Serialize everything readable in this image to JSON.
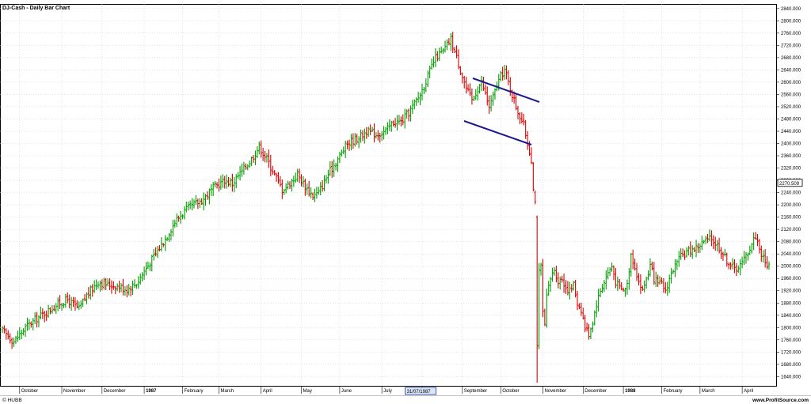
{
  "chart_data": {
    "type": "ohlc",
    "title": "DJ-Cash - Daily Bar Chart",
    "ylim": [
      1610,
      2855
    ],
    "y_ticks": [
      1640,
      1680,
      1720,
      1760,
      1800,
      1840,
      1880,
      1920,
      1960,
      2000,
      2040,
      2080,
      2120,
      2160,
      2200,
      2240,
      2280,
      2320,
      2360,
      2400,
      2440,
      2480,
      2520,
      2560,
      2600,
      2640,
      2680,
      2720,
      2760,
      2800,
      2840
    ],
    "y_tick_labels": [
      "1640.000",
      "1680.000",
      "1720.000",
      "1760.000",
      "1800.000",
      "1840.000",
      "1880.000",
      "1920.000",
      "1960.000",
      "2000.000",
      "2040.000",
      "2080.000",
      "2120.000",
      "2160.000",
      "2200.000",
      "2240.000",
      "2280.000",
      "2320.000",
      "2360.000",
      "2400.000",
      "2440.000",
      "2480.000",
      "2520.000",
      "2560.000",
      "2600.000",
      "2640.000",
      "2680.000",
      "2720.000",
      "2760.000",
      "2800.000",
      "2840.000"
    ],
    "x_labels": [
      {
        "label": "October",
        "day": 9,
        "year_marker": false
      },
      {
        "label": "November",
        "day": 31,
        "year_marker": false
      },
      {
        "label": "December",
        "day": 52,
        "year_marker": false
      },
      {
        "label": "1987",
        "day": 74,
        "year_marker": true
      },
      {
        "label": "February",
        "day": 94,
        "year_marker": false
      },
      {
        "label": "March",
        "day": 113,
        "year_marker": false
      },
      {
        "label": "April",
        "day": 135,
        "year_marker": false
      },
      {
        "label": "May",
        "day": 156,
        "year_marker": false
      },
      {
        "label": "June",
        "day": 176,
        "year_marker": false
      },
      {
        "label": "July",
        "day": 198,
        "year_marker": false
      },
      {
        "label": "st",
        "day": 219,
        "year_marker": false
      },
      {
        "label": "September",
        "day": 240,
        "year_marker": false
      },
      {
        "label": "October",
        "day": 260,
        "year_marker": false
      },
      {
        "label": "November",
        "day": 282,
        "year_marker": false
      },
      {
        "label": "December",
        "day": 303,
        "year_marker": false
      },
      {
        "label": "1988",
        "day": 324,
        "year_marker": true
      },
      {
        "label": "February",
        "day": 344,
        "year_marker": false
      },
      {
        "label": "March",
        "day": 364,
        "year_marker": false
      },
      {
        "label": "April",
        "day": 386,
        "year_marker": false
      }
    ],
    "x_cursor_label": {
      "text": "31/07/1987",
      "day": 211
    },
    "last_value_label": "2270.509",
    "last_value": 2270.509,
    "up_color": "#00a000",
    "down_color": "#e00000",
    "trendline_color": "#1a1a8c",
    "anchors": [
      [
        0,
        1790
      ],
      [
        6,
        1755
      ],
      [
        12,
        1800
      ],
      [
        18,
        1830
      ],
      [
        24,
        1855
      ],
      [
        30,
        1880
      ],
      [
        34,
        1890
      ],
      [
        40,
        1860
      ],
      [
        44,
        1905
      ],
      [
        50,
        1950
      ],
      [
        55,
        1940
      ],
      [
        60,
        1935
      ],
      [
        65,
        1925
      ],
      [
        70,
        1945
      ],
      [
        74,
        1985
      ],
      [
        80,
        2040
      ],
      [
        85,
        2090
      ],
      [
        90,
        2145
      ],
      [
        95,
        2180
      ],
      [
        100,
        2200
      ],
      [
        105,
        2220
      ],
      [
        110,
        2255
      ],
      [
        116,
        2280
      ],
      [
        120,
        2270
      ],
      [
        125,
        2310
      ],
      [
        130,
        2350
      ],
      [
        134,
        2390
      ],
      [
        138,
        2350
      ],
      [
        142,
        2300
      ],
      [
        146,
        2250
      ],
      [
        150,
        2270
      ],
      [
        154,
        2300
      ],
      [
        158,
        2260
      ],
      [
        162,
        2230
      ],
      [
        165,
        2240
      ],
      [
        170,
        2300
      ],
      [
        175,
        2350
      ],
      [
        180,
        2400
      ],
      [
        186,
        2420
      ],
      [
        190,
        2440
      ],
      [
        195,
        2430
      ],
      [
        200,
        2440
      ],
      [
        204,
        2470
      ],
      [
        208,
        2470
      ],
      [
        212,
        2500
      ],
      [
        218,
        2560
      ],
      [
        222,
        2620
      ],
      [
        226,
        2680
      ],
      [
        230,
        2700
      ],
      [
        234,
        2740
      ],
      [
        236,
        2700
      ],
      [
        238,
        2660
      ],
      [
        240,
        2620
      ],
      [
        242,
        2580
      ],
      [
        245,
        2540
      ],
      [
        248,
        2580
      ],
      [
        250,
        2600
      ],
      [
        252,
        2560
      ],
      [
        254,
        2520
      ],
      [
        256,
        2550
      ],
      [
        258,
        2590
      ],
      [
        260,
        2620
      ],
      [
        262,
        2640
      ],
      [
        264,
        2600
      ],
      [
        266,
        2560
      ],
      [
        268,
        2520
      ],
      [
        270,
        2490
      ],
      [
        272,
        2460
      ],
      [
        274,
        2400
      ],
      [
        276,
        2350
      ],
      [
        277,
        2250
      ],
      [
        278,
        2150
      ],
      [
        279,
        1750
      ],
      [
        280,
        1980
      ],
      [
        281,
        2000
      ],
      [
        282,
        1850
      ],
      [
        283,
        1800
      ],
      [
        284,
        1900
      ],
      [
        286,
        1960
      ],
      [
        288,
        1990
      ],
      [
        290,
        1950
      ],
      [
        292,
        1960
      ],
      [
        294,
        1930
      ],
      [
        296,
        1920
      ],
      [
        298,
        1940
      ],
      [
        300,
        1880
      ],
      [
        302,
        1860
      ],
      [
        304,
        1800
      ],
      [
        306,
        1780
      ],
      [
        308,
        1820
      ],
      [
        310,
        1880
      ],
      [
        312,
        1920
      ],
      [
        314,
        1950
      ],
      [
        316,
        1980
      ],
      [
        318,
        2000
      ],
      [
        320,
        1950
      ],
      [
        322,
        1930
      ],
      [
        324,
        1920
      ],
      [
        326,
        1940
      ],
      [
        328,
        2040
      ],
      [
        330,
        2000
      ],
      [
        332,
        1950
      ],
      [
        334,
        1920
      ],
      [
        336,
        1960
      ],
      [
        338,
        2000
      ],
      [
        340,
        1960
      ],
      [
        342,
        1940
      ],
      [
        344,
        1940
      ],
      [
        346,
        1920
      ],
      [
        348,
        1960
      ],
      [
        350,
        1990
      ],
      [
        354,
        2030
      ],
      [
        358,
        2050
      ],
      [
        362,
        2060
      ],
      [
        366,
        2080
      ],
      [
        370,
        2090
      ],
      [
        374,
        2060
      ],
      [
        378,
        2020
      ],
      [
        382,
        1990
      ],
      [
        386,
        2010
      ],
      [
        390,
        2060
      ],
      [
        393,
        2100
      ],
      [
        396,
        2040
      ],
      [
        398,
        2010
      ],
      [
        400,
        2000
      ]
    ]
  },
  "footer": {
    "copyright": "© HUBB",
    "source": "www.ProfitSource.com"
  }
}
